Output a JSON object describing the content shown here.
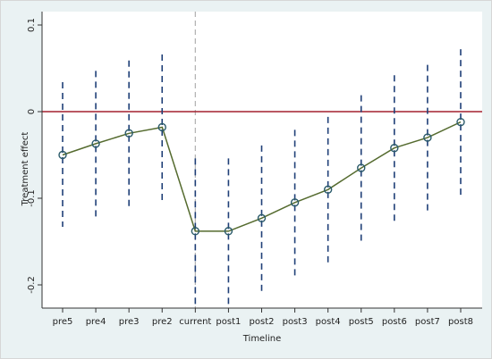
{
  "chart_data": {
    "type": "scatter",
    "title": "",
    "xlabel": "Timeline",
    "ylabel": "Treatment effect",
    "categories": [
      "pre5",
      "pre4",
      "pre3",
      "pre2",
      "current",
      "post1",
      "post2",
      "post3",
      "post4",
      "post5",
      "post6",
      "post7",
      "post8"
    ],
    "series": [
      {
        "values": [
          -0.05,
          -0.037,
          -0.025,
          -0.018,
          -0.138,
          -0.138,
          -0.123,
          -0.105,
          -0.09,
          -0.065,
          -0.042,
          -0.03,
          -0.012
        ],
        "ci_lower": [
          -0.133,
          -0.121,
          -0.109,
          -0.102,
          -0.222,
          -0.222,
          -0.207,
          -0.189,
          -0.174,
          -0.149,
          -0.126,
          -0.114,
          -0.096
        ],
        "ci_upper": [
          0.034,
          0.047,
          0.059,
          0.066,
          -0.054,
          -0.054,
          -0.039,
          -0.021,
          -0.006,
          0.019,
          0.042,
          0.054,
          0.072
        ],
        "color": "#556b2f",
        "marker_color": "#2a5a6a",
        "ci_color": "#1f3f77"
      }
    ],
    "yticks": [
      0.1,
      0,
      -0.1,
      -0.2
    ],
    "ytick_labels": [
      "0.1",
      "0",
      "-0.1",
      "-0.2"
    ],
    "ylim": [
      -0.228,
      0.1
    ],
    "reference_line_y": 0,
    "reference_line_color": "#a3202e",
    "event_line_category": "current",
    "event_line_color": "#b0b0b0",
    "grid": false,
    "legend": "none"
  }
}
